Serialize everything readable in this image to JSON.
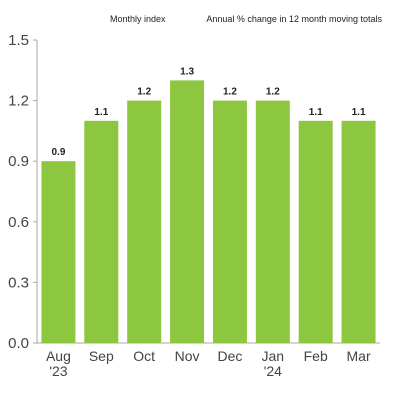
{
  "header": {
    "subtitle_left": "Monthly index",
    "subtitle_right": "Annual % change in 12 month moving totals"
  },
  "chart_data": {
    "type": "bar",
    "categories": [
      "Aug '23",
      "Sep",
      "Oct",
      "Nov",
      "Dec",
      "Jan '24",
      "Feb",
      "Mar"
    ],
    "category_labels": [
      [
        "Aug",
        "'23"
      ],
      [
        "Sep"
      ],
      [
        "Oct"
      ],
      [
        "Nov"
      ],
      [
        "Dec"
      ],
      [
        "Jan",
        "'24"
      ],
      [
        "Feb"
      ],
      [
        "Mar"
      ]
    ],
    "values": [
      0.9,
      1.1,
      1.2,
      1.3,
      1.2,
      1.2,
      1.1,
      1.1
    ],
    "data_labels": [
      "0.9",
      "1.1",
      "1.2",
      "1.3",
      "1.2",
      "1.2",
      "1.1",
      "1.1"
    ],
    "y_ticks": [
      "0.0",
      "0.3",
      "0.6",
      "0.9",
      "1.2",
      "1.5"
    ],
    "y_tick_values": [
      0,
      0.3,
      0.6,
      0.9,
      1.2,
      1.5
    ],
    "ylim": [
      0,
      1.5
    ],
    "title": "",
    "xlabel": "",
    "ylabel": "",
    "grid": false,
    "bar_color": "#8dc63f",
    "axis_color": "#aaaaaa"
  }
}
